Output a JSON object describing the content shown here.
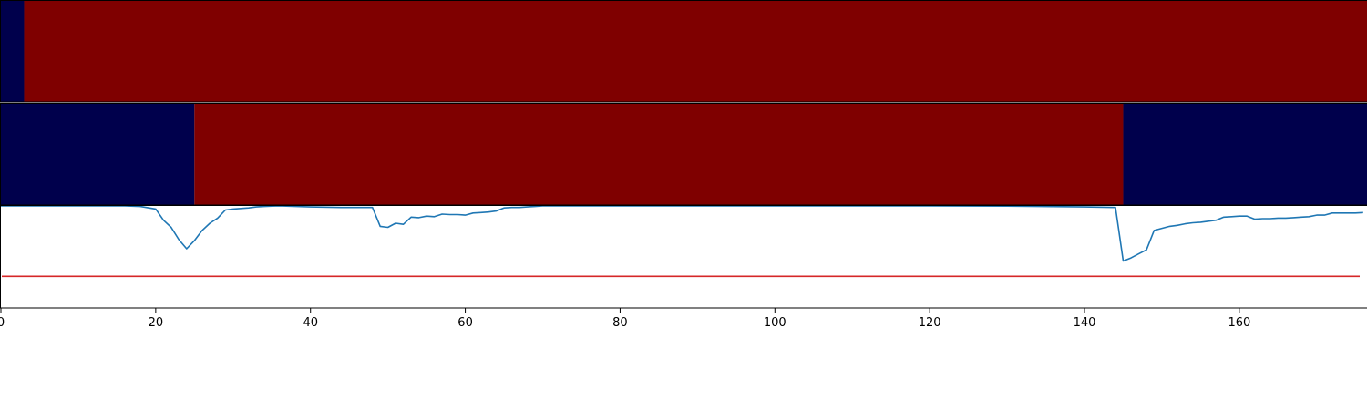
{
  "colors": {
    "state_high": "#7f0000",
    "state_low": "#00004c",
    "line": "#1f77b4",
    "threshold": "#d62728",
    "frame": "#000000"
  },
  "chart_data": {
    "type": "line",
    "title": "",
    "xlabel": "",
    "ylabel": "",
    "xlim": [
      0,
      176.5
    ],
    "ylim": [
      0,
      1
    ],
    "grid": false,
    "x_ticks": [
      0,
      20,
      40,
      60,
      80,
      100,
      120,
      140,
      160
    ],
    "state_bands": [
      {
        "segments": [
          {
            "start": 0,
            "end": 3,
            "state": "low"
          },
          {
            "start": 3,
            "end": 176.5,
            "state": "high"
          }
        ]
      },
      {
        "segments": [
          {
            "start": 0,
            "end": 25,
            "state": "low"
          },
          {
            "start": 25,
            "end": 145,
            "state": "high"
          },
          {
            "start": 145,
            "end": 176.5,
            "state": "low"
          }
        ]
      }
    ],
    "threshold": 0.31,
    "series": [
      {
        "x": [
          0,
          16,
          18,
          20,
          21,
          22,
          23,
          24,
          25,
          26,
          27,
          28,
          29,
          30,
          31,
          32,
          33,
          34,
          35,
          36,
          40,
          44,
          48,
          49,
          50,
          51,
          52,
          53,
          54,
          55,
          56,
          57,
          58,
          59,
          60,
          61,
          62,
          63,
          64,
          65,
          66,
          67,
          68,
          69,
          70,
          80,
          90,
          100,
          110,
          120,
          130,
          140,
          144,
          145,
          146,
          147,
          148,
          149,
          150,
          151,
          152,
          153,
          154,
          155,
          156,
          157,
          158,
          159,
          160,
          161,
          162,
          163,
          164,
          165,
          166,
          167,
          168,
          169,
          170,
          171,
          172,
          173,
          174,
          175,
          176
        ],
        "y": [
          1.0,
          1.0,
          0.995,
          0.97,
          0.86,
          0.79,
          0.67,
          0.58,
          0.66,
          0.76,
          0.83,
          0.88,
          0.96,
          0.97,
          0.975,
          0.98,
          0.99,
          0.995,
          0.998,
          1.0,
          0.99,
          0.985,
          0.985,
          0.8,
          0.79,
          0.83,
          0.82,
          0.89,
          0.885,
          0.9,
          0.895,
          0.92,
          0.915,
          0.915,
          0.91,
          0.93,
          0.935,
          0.94,
          0.95,
          0.98,
          0.985,
          0.985,
          0.99,
          0.995,
          1.0,
          1.0,
          1.0,
          1.0,
          1.0,
          1.0,
          0.998,
          0.99,
          0.985,
          0.46,
          0.49,
          0.53,
          0.57,
          0.76,
          0.78,
          0.8,
          0.81,
          0.825,
          0.835,
          0.84,
          0.85,
          0.86,
          0.89,
          0.895,
          0.9,
          0.9,
          0.87,
          0.875,
          0.875,
          0.88,
          0.88,
          0.885,
          0.89,
          0.895,
          0.91,
          0.91,
          0.93,
          0.93,
          0.93,
          0.93,
          0.935
        ]
      }
    ]
  }
}
